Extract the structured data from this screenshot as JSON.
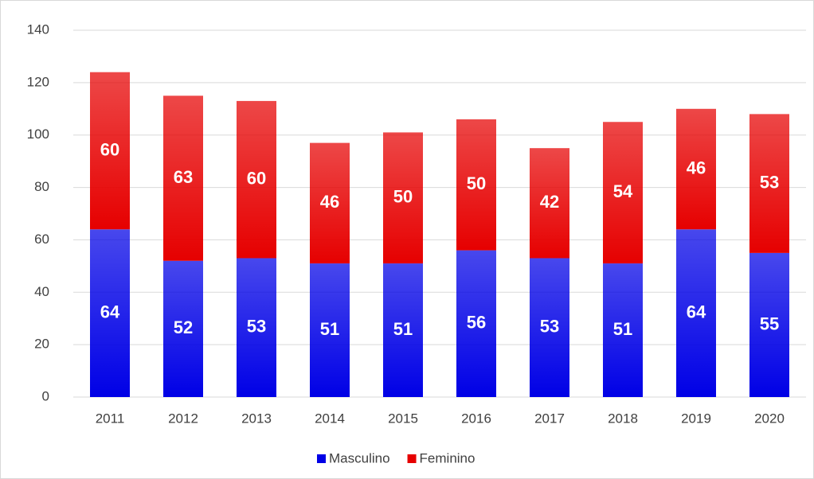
{
  "chart_data": {
    "type": "stacked_bar",
    "categories": [
      "2011",
      "2012",
      "2013",
      "2014",
      "2015",
      "2016",
      "2017",
      "2018",
      "2019",
      "2020"
    ],
    "series": [
      {
        "name": "Masculino",
        "color": "#0000e6",
        "values": [
          64,
          52,
          53,
          51,
          51,
          56,
          53,
          51,
          64,
          55
        ]
      },
      {
        "name": "Feminino",
        "color": "#e60000",
        "values": [
          60,
          63,
          60,
          46,
          50,
          50,
          42,
          54,
          46,
          53
        ]
      }
    ],
    "ylim": [
      0,
      140
    ],
    "yticks": [
      0,
      20,
      40,
      60,
      80,
      100,
      120,
      140
    ],
    "grid": true,
    "legend": "bottom"
  }
}
